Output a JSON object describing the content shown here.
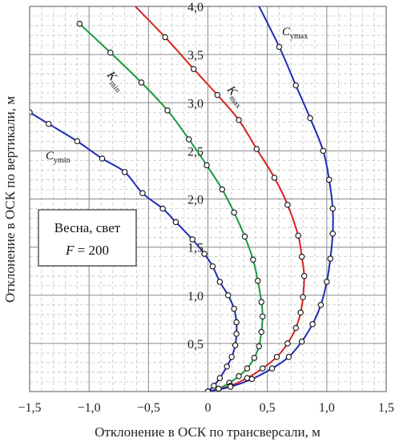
{
  "chart_data": {
    "type": "line",
    "xlabel": "Отклонение в ОСК по трансверсали, м",
    "ylabel": "Отклонение в ОСК по вертикали, м",
    "xlim": [
      -1.5,
      1.5
    ],
    "ylim": [
      0,
      4.0
    ],
    "xticks": [
      "−1,5",
      "−1,0",
      "−0,5",
      "0",
      "0,5",
      "1,0",
      "1,5"
    ],
    "yticks": [
      "0,5",
      "1,0",
      "1,5",
      "2,0",
      "2,5",
      "3,0",
      "3,5",
      "4,0"
    ],
    "grid": true,
    "annotation": {
      "line1": "Весна, свет",
      "line2_var": "F",
      "line2_rest": " = 200"
    },
    "series": [
      {
        "name": "C",
        "name_sub": "ymin",
        "color": "#1f2bb5",
        "points": [
          [
            -1.5,
            2.9
          ],
          [
            -1.34,
            2.78
          ],
          [
            -1.1,
            2.6
          ],
          [
            -0.89,
            2.42
          ],
          [
            -0.7,
            2.28
          ],
          [
            -0.55,
            2.06
          ],
          [
            -0.38,
            1.9
          ],
          [
            -0.27,
            1.76
          ],
          [
            -0.13,
            1.58
          ],
          [
            -0.03,
            1.43
          ],
          [
            0.04,
            1.3
          ],
          [
            0.1,
            1.14
          ],
          [
            0.17,
            1.0
          ],
          [
            0.22,
            0.86
          ],
          [
            0.24,
            0.72
          ],
          [
            0.24,
            0.6
          ],
          [
            0.23,
            0.48
          ],
          [
            0.2,
            0.36
          ],
          [
            0.16,
            0.26
          ],
          [
            0.1,
            0.14
          ],
          [
            0.05,
            0.06
          ],
          [
            0.0,
            0.0
          ]
        ]
      },
      {
        "name": "K",
        "name_sub": "min",
        "color": "#1a9a3a",
        "points": [
          [
            -1.08,
            3.82
          ],
          [
            -0.82,
            3.52
          ],
          [
            -0.56,
            3.21
          ],
          [
            -0.34,
            2.92
          ],
          [
            -0.16,
            2.62
          ],
          [
            -0.01,
            2.35
          ],
          [
            0.12,
            2.1
          ],
          [
            0.22,
            1.86
          ],
          [
            0.31,
            1.61
          ],
          [
            0.38,
            1.37
          ],
          [
            0.42,
            1.15
          ],
          [
            0.45,
            0.93
          ],
          [
            0.46,
            0.78
          ],
          [
            0.45,
            0.62
          ],
          [
            0.43,
            0.47
          ],
          [
            0.39,
            0.35
          ],
          [
            0.33,
            0.24
          ],
          [
            0.26,
            0.16
          ],
          [
            0.18,
            0.09
          ],
          [
            0.09,
            0.03
          ],
          [
            0.0,
            0.0
          ]
        ]
      },
      {
        "name": "K",
        "name_sub": "max",
        "color": "#d6231f",
        "points": [
          [
            -0.65,
            4.05
          ],
          [
            -0.36,
            3.68
          ],
          [
            -0.12,
            3.35
          ],
          [
            0.08,
            3.08
          ],
          [
            0.26,
            2.82
          ],
          [
            0.41,
            2.52
          ],
          [
            0.56,
            2.22
          ],
          [
            0.67,
            1.94
          ],
          [
            0.76,
            1.62
          ],
          [
            0.79,
            1.4
          ],
          [
            0.81,
            1.2
          ],
          [
            0.8,
            0.98
          ],
          [
            0.78,
            0.82
          ],
          [
            0.74,
            0.66
          ],
          [
            0.67,
            0.5
          ],
          [
            0.58,
            0.36
          ],
          [
            0.46,
            0.24
          ],
          [
            0.33,
            0.14
          ],
          [
            0.19,
            0.06
          ],
          [
            0.0,
            0.0
          ]
        ]
      },
      {
        "name": "C",
        "name_sub": "ymax",
        "color": "#1f2bb5",
        "points": [
          [
            0.41,
            4.05
          ],
          [
            0.6,
            3.58
          ],
          [
            0.74,
            3.18
          ],
          [
            0.86,
            2.84
          ],
          [
            0.97,
            2.5
          ],
          [
            1.02,
            2.2
          ],
          [
            1.05,
            1.9
          ],
          [
            1.05,
            1.64
          ],
          [
            1.03,
            1.38
          ],
          [
            1.0,
            1.14
          ],
          [
            0.95,
            0.9
          ],
          [
            0.88,
            0.7
          ],
          [
            0.79,
            0.52
          ],
          [
            0.68,
            0.36
          ],
          [
            0.54,
            0.24
          ],
          [
            0.37,
            0.13
          ],
          [
            0.19,
            0.05
          ],
          [
            0.0,
            0.0
          ]
        ]
      }
    ],
    "labels": [
      {
        "series": 0,
        "text": "C",
        "sub": "ymin"
      },
      {
        "series": 1,
        "text": "K",
        "sub": "min"
      },
      {
        "series": 2,
        "text": "K",
        "sub": "max"
      },
      {
        "series": 3,
        "text": "C",
        "sub": "ymax"
      }
    ]
  }
}
